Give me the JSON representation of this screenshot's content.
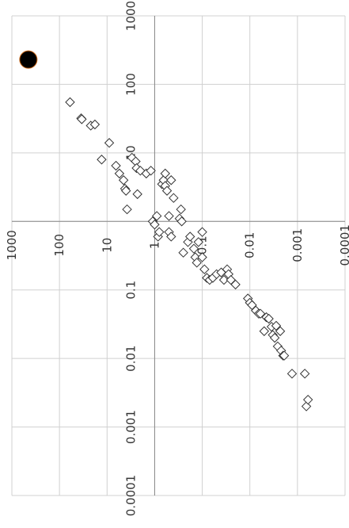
{
  "chart_data": {
    "type": "scatter",
    "title": "",
    "xlabel": "",
    "ylabel": "",
    "x_scale": "log",
    "y_scale": "log",
    "x_direction": "decreasing",
    "xlim": [
      1000,
      0.0001
    ],
    "ylim": [
      0.0001,
      1000
    ],
    "grid": true,
    "legend": "none",
    "x_ticks": [
      {
        "value": 1000,
        "label": "1000"
      },
      {
        "value": 100,
        "label": "100"
      },
      {
        "value": 10,
        "label": "10"
      },
      {
        "value": 1,
        "label": "1"
      },
      {
        "value": 0.1,
        "label": "0.1"
      },
      {
        "value": 0.01,
        "label": "0.01"
      },
      {
        "value": 0.001,
        "label": "0.001"
      },
      {
        "value": 0.0001,
        "label": "0.0001"
      }
    ],
    "y_ticks": [
      {
        "value": 0.0001,
        "label": "0.0001"
      },
      {
        "value": 0.001,
        "label": "0.001"
      },
      {
        "value": 0.01,
        "label": "0.01"
      },
      {
        "value": 0.1,
        "label": "0.1"
      },
      {
        "value": 10,
        "label": "10"
      },
      {
        "value": 100,
        "label": "100"
      },
      {
        "value": 1000,
        "label": "1000"
      }
    ],
    "colors": {
      "grid": "#d0d0d0",
      "axis": "#888888",
      "marker_stroke": "#333333",
      "highlight_fill": "#000000",
      "highlight_stroke": "#c86414"
    },
    "series": [
      {
        "marker": "diamond-open",
        "points": [
          [
            60,
            55
          ],
          [
            35,
            32
          ],
          [
            34,
            31
          ],
          [
            22,
            25
          ],
          [
            18,
            26
          ],
          [
            13,
            8
          ],
          [
            9,
            14
          ],
          [
            6.5,
            6.5
          ],
          [
            5.5,
            5
          ],
          [
            4.5,
            4
          ],
          [
            4.2,
            3
          ],
          [
            4,
            2.8
          ],
          [
            3.8,
            1.5
          ],
          [
            3,
            8.5
          ],
          [
            2.5,
            7.5
          ],
          [
            2.4,
            6
          ],
          [
            2.3,
            2.5
          ],
          [
            2,
            5.5
          ],
          [
            1.5,
            5
          ],
          [
            1.2,
            5.5
          ],
          [
            1.1,
            1
          ],
          [
            1,
            0.9
          ],
          [
            0.9,
            1.2
          ],
          [
            0.85,
            0.6
          ],
          [
            0.8,
            0.7
          ],
          [
            0.7,
            3.5
          ],
          [
            0.65,
            4
          ],
          [
            0.6,
            5
          ],
          [
            0.6,
            3.3
          ],
          [
            0.55,
            2.8
          ],
          [
            0.5,
            1.2
          ],
          [
            0.5,
            0.7
          ],
          [
            0.45,
            0.6
          ],
          [
            0.45,
            4
          ],
          [
            0.4,
            2.2
          ],
          [
            0.3,
            1.1
          ],
          [
            0.28,
            1.5
          ],
          [
            0.27,
            1
          ],
          [
            0.25,
            0.35
          ],
          [
            0.2,
            0.5
          ],
          [
            0.18,
            0.6
          ],
          [
            0.15,
            0.4
          ],
          [
            0.14,
            0.3
          ],
          [
            0.13,
            0.25
          ],
          [
            0.12,
            0.5
          ],
          [
            0.1,
            0.7
          ],
          [
            0.1,
            0.3
          ],
          [
            0.09,
            0.2
          ],
          [
            0.08,
            0.15
          ],
          [
            0.07,
            0.14
          ],
          [
            0.06,
            0.15
          ],
          [
            0.05,
            0.17
          ],
          [
            0.04,
            0.18
          ],
          [
            0.035,
            0.14
          ],
          [
            0.03,
            0.2
          ],
          [
            0.028,
            0.17
          ],
          [
            0.025,
            0.14
          ],
          [
            0.02,
            0.12
          ],
          [
            0.011,
            0.075
          ],
          [
            0.01,
            0.065
          ],
          [
            0.009,
            0.06
          ],
          [
            0.0075,
            0.05
          ],
          [
            0.0065,
            0.045
          ],
          [
            0.006,
            0.045
          ],
          [
            0.005,
            0.025
          ],
          [
            0.0045,
            0.04
          ],
          [
            0.004,
            0.038
          ],
          [
            0.0035,
            0.029
          ],
          [
            0.0033,
            0.022
          ],
          [
            0.003,
            0.02
          ],
          [
            0.0028,
            0.03
          ],
          [
            0.0026,
            0.015
          ],
          [
            0.0023,
            0.025
          ],
          [
            0.0022,
            0.013
          ],
          [
            0.002,
            0.011
          ],
          [
            0.0019,
            0.011
          ],
          [
            0.0013,
            0.006
          ],
          [
            0.0007,
            0.006
          ],
          [
            0.00065,
            0.002
          ],
          [
            0.0006,
            0.0025
          ],
          [
            6e-05,
            0.0001
          ]
        ]
      },
      {
        "marker": "circle-filled",
        "points": [
          [
            450,
            230
          ]
        ]
      }
    ]
  }
}
